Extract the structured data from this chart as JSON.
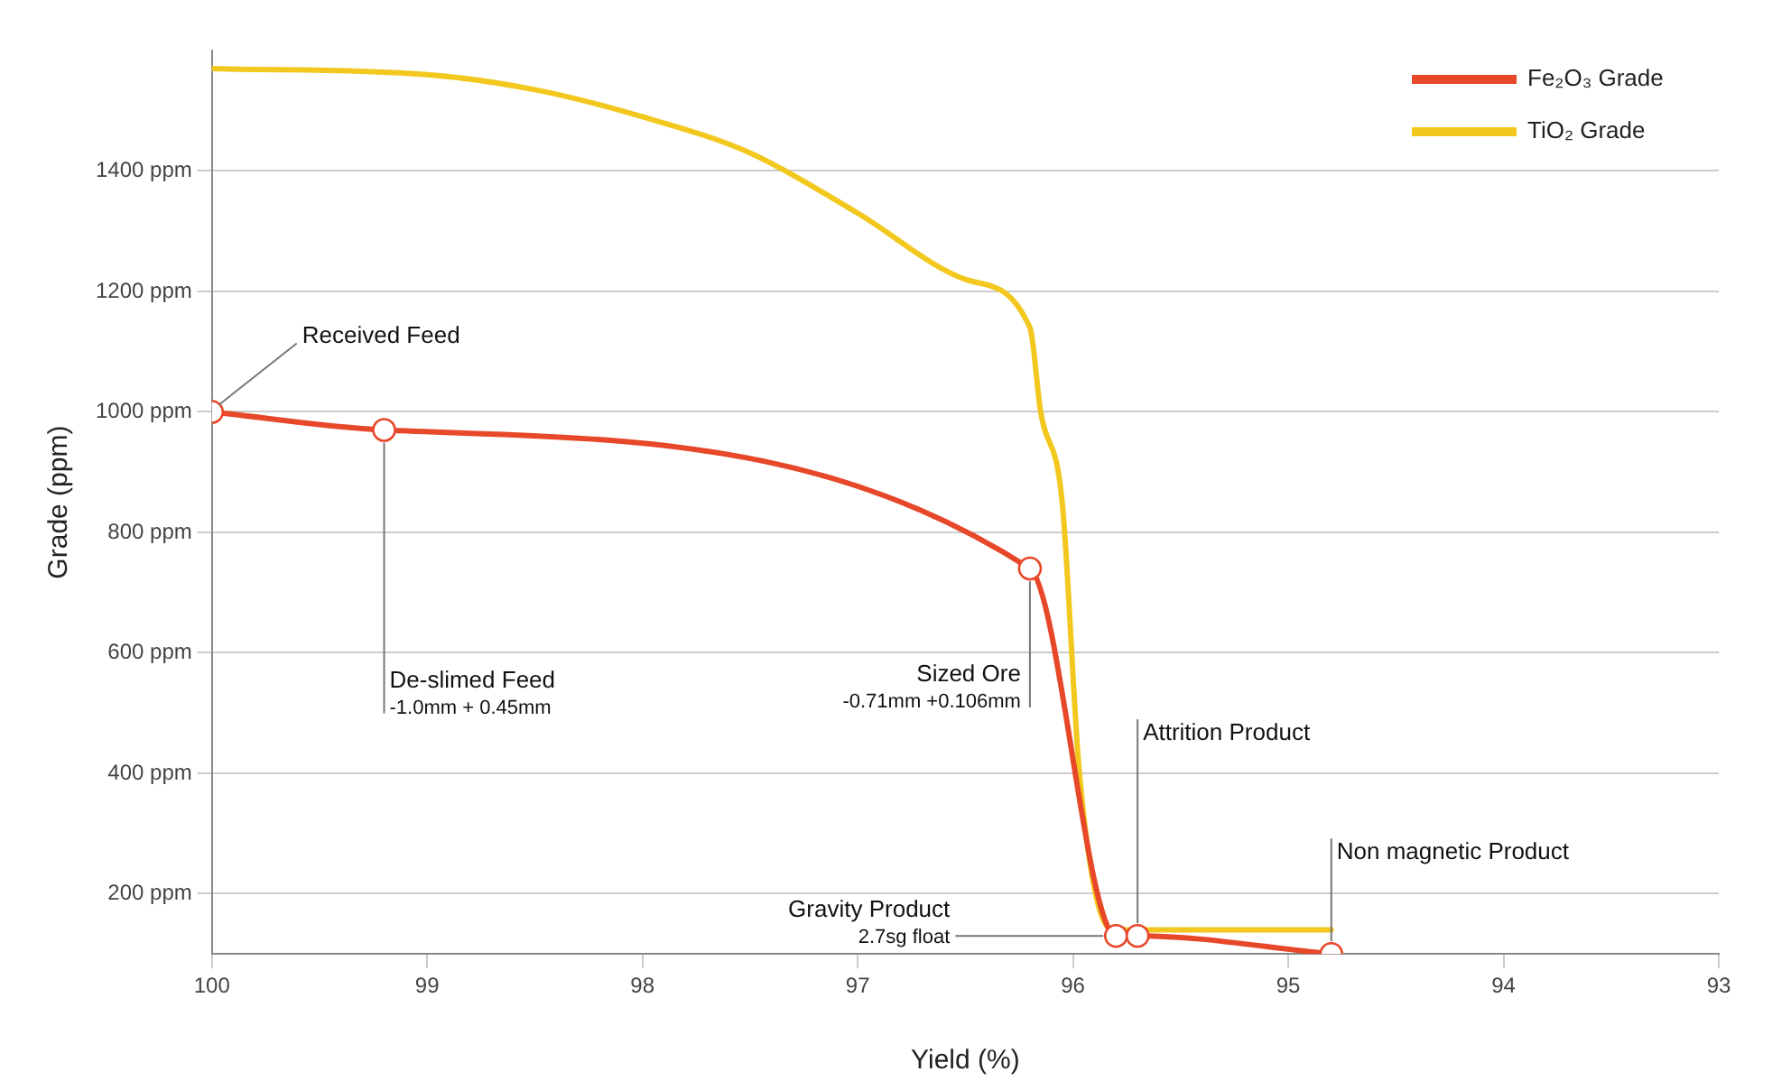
{
  "chart_data": {
    "type": "line",
    "xlabel": "Yield (%)",
    "ylabel": "Grade (ppm)",
    "xlim": [
      100,
      93
    ],
    "xticks": [
      100,
      99,
      98,
      97,
      96,
      95,
      94,
      93
    ],
    "ylim": [
      100,
      1600
    ],
    "yticks": [
      {
        "value": 200,
        "label": "200 ppm"
      },
      {
        "value": 400,
        "label": "400 ppm"
      },
      {
        "value": 600,
        "label": "600 ppm"
      },
      {
        "value": 800,
        "label": "800 ppm"
      },
      {
        "value": 1000,
        "label": "1000 ppm"
      },
      {
        "value": 1200,
        "label": "1200 ppm"
      },
      {
        "value": 1400,
        "label": "1400 ppm"
      }
    ],
    "grid": "y",
    "legend": "top right",
    "series": [
      {
        "name": "Fe₂O₃ Grade",
        "color": "#e8482a",
        "marker": "circle",
        "x": [
          100,
          99.2,
          96.2,
          95.8,
          95.7,
          94.8
        ],
        "values": [
          1000,
          970,
          740,
          130,
          130,
          100
        ]
      },
      {
        "name": "TiO₂ Grade",
        "color": "#f2c81e",
        "marker": "none",
        "x": [
          100,
          99,
          98.5,
          98,
          97.5,
          97,
          96.5,
          96.2,
          96.15,
          96.05,
          95.97,
          95.85,
          95.8,
          94.8
        ],
        "values": [
          1570,
          1560,
          1535,
          1490,
          1430,
          1330,
          1220,
          1140,
          1000,
          850,
          400,
          150,
          140,
          140
        ]
      }
    ],
    "annotations": [
      {
        "text": "Received Feed",
        "x": 100,
        "y": 1000
      },
      {
        "text": "De-slimed Feed\n-1.0mm + 0.45mm",
        "x": 99.2,
        "y": 970
      },
      {
        "text": "Sized Ore\n-0.71mm +0.106mm",
        "x": 96.2,
        "y": 740
      },
      {
        "text": "Gravity Product\n2.7sg float",
        "x": 95.8,
        "y": 130
      },
      {
        "text": "Attrition Product",
        "x": 95.7,
        "y": 130
      },
      {
        "text": "Non magnetic Product",
        "x": 94.8,
        "y": 100
      }
    ]
  }
}
